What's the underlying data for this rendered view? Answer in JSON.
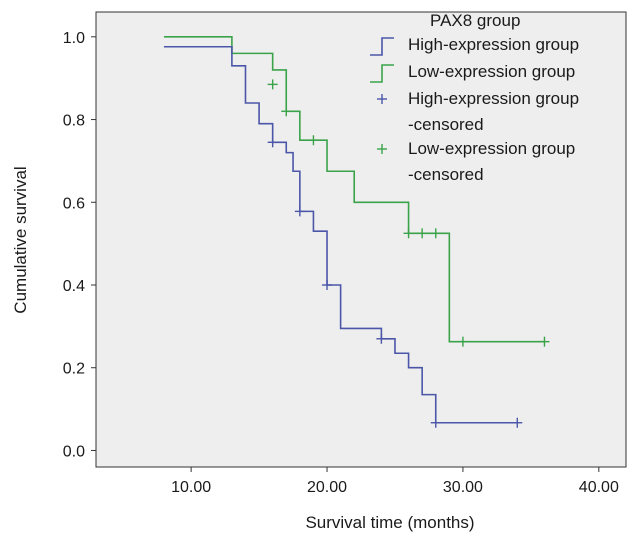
{
  "chart_data": {
    "type": "line",
    "subtype": "kaplan-meier step",
    "title": "",
    "xlabel": "Survival time (months)",
    "ylabel": "Cumulative survival",
    "xlim": [
      3,
      42
    ],
    "ylim": [
      -0.04,
      1.06
    ],
    "x_ticks": [
      10,
      20,
      30,
      40
    ],
    "x_tick_labels": [
      "10.00",
      "20.00",
      "30.00",
      "40.00"
    ],
    "y_ticks": [
      0.0,
      0.2,
      0.4,
      0.6,
      0.8,
      1.0
    ],
    "y_tick_labels": [
      "0.0",
      "0.2",
      "0.4",
      "0.6",
      "0.8",
      "1.0"
    ],
    "grid": false,
    "legend_position": "top-right",
    "legend_title": "PAX8 group",
    "background_color": "#eeeeee",
    "series": [
      {
        "name": "High-expression group",
        "color": "#4b56a8",
        "steps": [
          [
            8,
            0.976
          ],
          [
            13,
            0.93
          ],
          [
            14,
            0.84
          ],
          [
            15,
            0.79
          ],
          [
            16,
            0.745
          ],
          [
            17,
            0.72
          ],
          [
            17.5,
            0.675
          ],
          [
            18,
            0.578
          ],
          [
            19,
            0.53
          ],
          [
            20,
            0.4
          ],
          [
            21,
            0.295
          ],
          [
            24,
            0.27
          ],
          [
            25,
            0.235
          ],
          [
            26,
            0.2
          ],
          [
            27,
            0.135
          ],
          [
            28,
            0.067
          ],
          [
            34,
            0.067
          ]
        ],
        "censored": [
          [
            16,
            0.745
          ],
          [
            18,
            0.578
          ],
          [
            20,
            0.4
          ],
          [
            24,
            0.27
          ],
          [
            28,
            0.067
          ],
          [
            34,
            0.067
          ]
        ]
      },
      {
        "name": "Low-expression group",
        "color": "#3aa34a",
        "steps": [
          [
            8,
            1.0
          ],
          [
            13,
            0.96
          ],
          [
            16,
            0.92
          ],
          [
            17,
            0.82
          ],
          [
            18,
            0.75
          ],
          [
            20,
            0.675
          ],
          [
            22,
            0.6
          ],
          [
            26,
            0.525
          ],
          [
            29,
            0.263
          ],
          [
            36,
            0.263
          ]
        ],
        "censored": [
          [
            16,
            0.885
          ],
          [
            17,
            0.82
          ],
          [
            19,
            0.75
          ],
          [
            26,
            0.525
          ],
          [
            27,
            0.525
          ],
          [
            28,
            0.525
          ],
          [
            30,
            0.263
          ],
          [
            36,
            0.263
          ]
        ]
      }
    ],
    "legend_entries": [
      {
        "label": "High-expression group",
        "kind": "line",
        "series": 0
      },
      {
        "label": "Low-expression group",
        "kind": "line",
        "series": 1
      },
      {
        "label": "High-expression group",
        "label2": "-censored",
        "kind": "censor",
        "series": 0
      },
      {
        "label": "Low-expression group",
        "label2": "-censored",
        "kind": "censor",
        "series": 1
      }
    ]
  }
}
